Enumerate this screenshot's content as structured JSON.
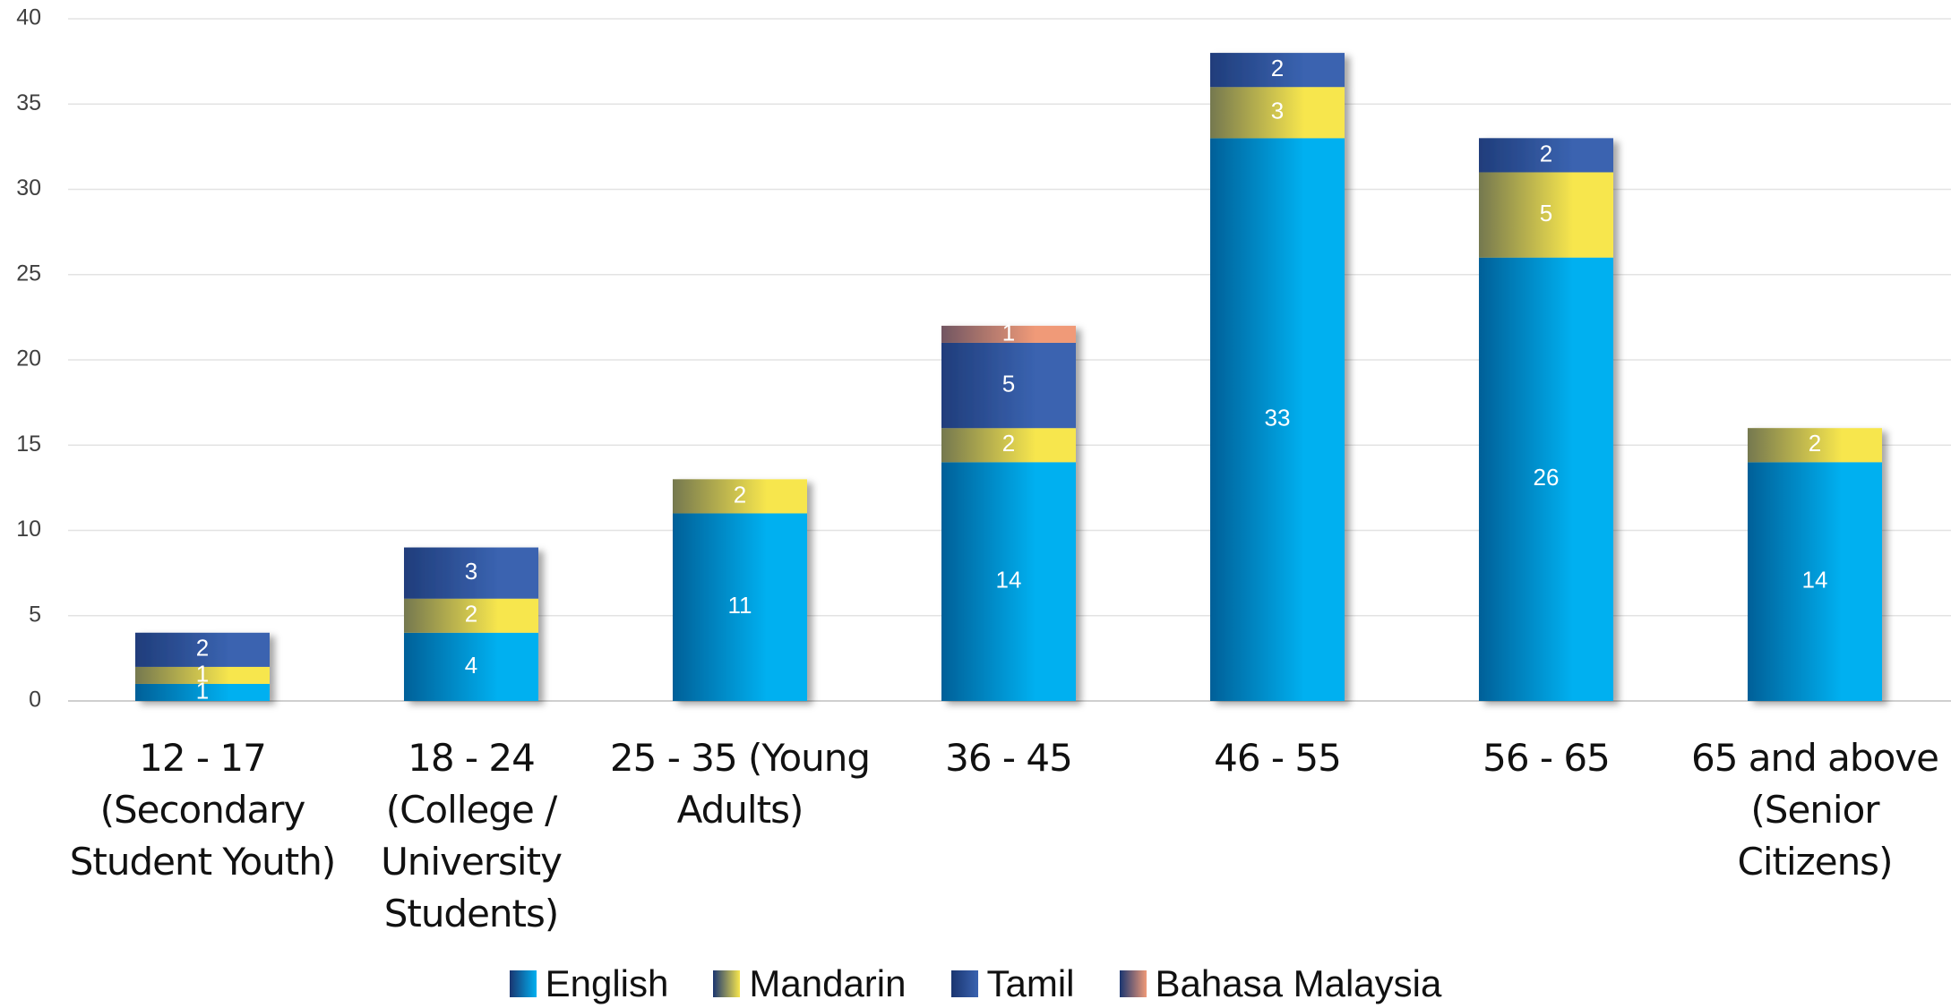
{
  "chart_data": {
    "type": "stacked_bar",
    "categories": [
      "12 - 17 (Secondary Student Youth)",
      "18 - 24 (College / University Students)",
      "25 - 35 (Young Adults)",
      "36 - 45",
      "46 - 55",
      "56 - 65",
      "65 and above (Senior Citizens)"
    ],
    "series": [
      {
        "name": "English",
        "color": "#00b0f0",
        "values": [
          1,
          4,
          11,
          14,
          33,
          26,
          14
        ]
      },
      {
        "name": "Mandarin",
        "color": "#f7e64e",
        "values": [
          1,
          2,
          2,
          2,
          3,
          5,
          2
        ]
      },
      {
        "name": "Tamil",
        "color": "#3a63b0",
        "values": [
          2,
          3,
          null,
          5,
          2,
          2,
          null
        ]
      },
      {
        "name": "Bahasa Malaysia",
        "color": "#f09a78",
        "values": [
          null,
          null,
          null,
          1,
          null,
          null,
          null
        ]
      }
    ],
    "ylim": [
      0,
      40
    ],
    "yticks": [
      0,
      5,
      10,
      15,
      20,
      25,
      30,
      35,
      40
    ],
    "grid": true,
    "legend": "bottom"
  }
}
